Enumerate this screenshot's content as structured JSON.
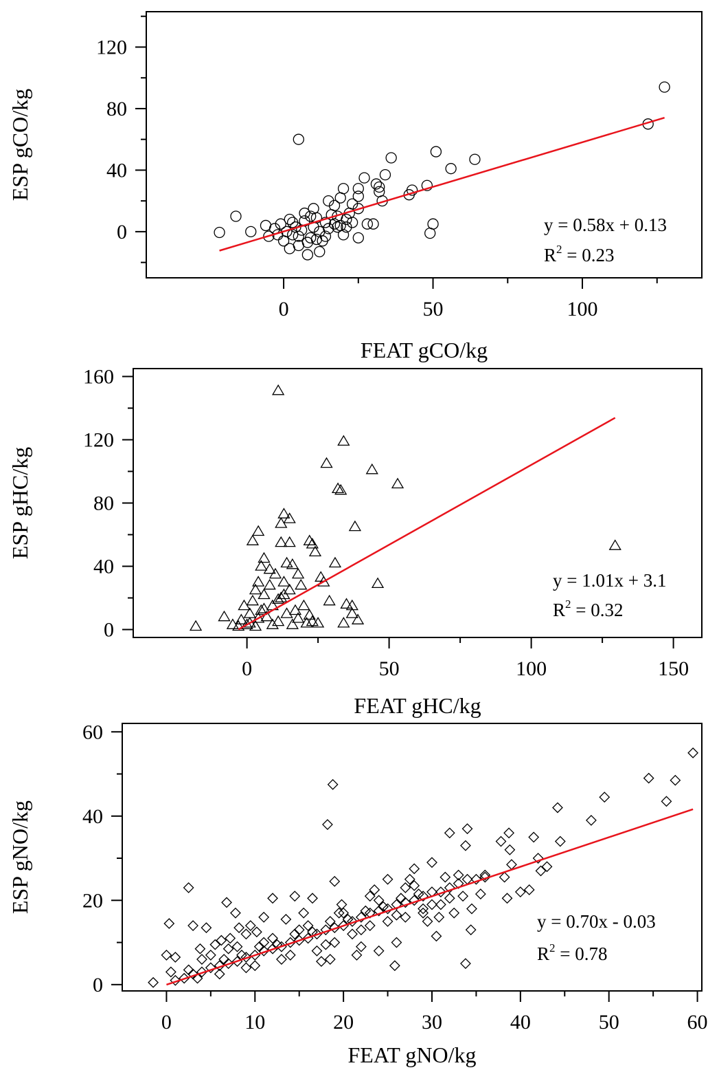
{
  "chart_data": [
    {
      "type": "scatter",
      "marker": "circle",
      "xlabel": "FEAT gCO/kg",
      "ylabel": "ESP gCO/kg",
      "xlim": [
        -46,
        140
      ],
      "ylim": [
        -30,
        143
      ],
      "xticks": [
        0,
        50,
        100
      ],
      "xminor": [
        25,
        75,
        125
      ],
      "yticks": [
        0,
        40,
        80,
        120
      ],
      "yminor": [
        -20,
        20,
        60,
        100,
        140
      ],
      "grid": false,
      "fit": {
        "slope": 0.58,
        "intercept": 0.13,
        "x_range": [
          -21.5,
          127.5
        ],
        "color": "#e8141c"
      },
      "equation": "y = 0.58x + 0.13",
      "r2_prefix": "R",
      "r2_sup": "2",
      "r2_value": " = 0.23",
      "points": [
        [
          -21.5,
          -0.5
        ],
        [
          -16,
          10
        ],
        [
          -11,
          0
        ],
        [
          -6,
          4
        ],
        [
          2,
          -11
        ],
        [
          2,
          8
        ],
        [
          4,
          3
        ],
        [
          5,
          60
        ],
        [
          5,
          -9
        ],
        [
          7,
          12
        ],
        [
          8,
          -15
        ],
        [
          9,
          -4
        ],
        [
          10,
          15
        ],
        [
          11,
          -5
        ],
        [
          12,
          -13
        ],
        [
          14,
          6
        ],
        [
          15,
          20
        ],
        [
          17,
          17
        ],
        [
          18,
          10
        ],
        [
          19,
          22
        ],
        [
          20,
          28
        ],
        [
          21,
          3
        ],
        [
          23,
          18
        ],
        [
          25,
          -4
        ],
        [
          25,
          15
        ],
        [
          25,
          23
        ],
        [
          25,
          28
        ],
        [
          27,
          35
        ],
        [
          28,
          5
        ],
        [
          30,
          5
        ],
        [
          31,
          31
        ],
        [
          32,
          29
        ],
        [
          32,
          26
        ],
        [
          33,
          20
        ],
        [
          34,
          37
        ],
        [
          36,
          48
        ],
        [
          42,
          24
        ],
        [
          43,
          27
        ],
        [
          48,
          30
        ],
        [
          49,
          -1
        ],
        [
          50,
          5
        ],
        [
          51,
          52
        ],
        [
          56,
          41
        ],
        [
          64,
          47
        ],
        [
          122,
          70
        ],
        [
          127.5,
          94
        ],
        [
          -5,
          -3
        ],
        [
          -3,
          2
        ],
        [
          0,
          -6
        ],
        [
          1,
          0
        ],
        [
          3,
          -2
        ],
        [
          6,
          1
        ],
        [
          8,
          -7
        ],
        [
          10,
          3
        ],
        [
          12,
          0
        ],
        [
          13,
          -6
        ],
        [
          15,
          2
        ],
        [
          17,
          5
        ],
        [
          19,
          4
        ],
        [
          21,
          8
        ],
        [
          22,
          12
        ],
        [
          16,
          11
        ],
        [
          11,
          9
        ],
        [
          5,
          -3
        ],
        [
          3,
          6
        ],
        [
          -1,
          5
        ],
        [
          -2,
          -2
        ],
        [
          7,
          7
        ],
        [
          9,
          10
        ],
        [
          18,
          3
        ],
        [
          23,
          6
        ],
        [
          20,
          -2
        ],
        [
          14,
          -3
        ]
      ]
    },
    {
      "type": "scatter",
      "marker": "triangle",
      "xlabel": "FEAT gHC/kg",
      "ylabel": "ESP gHC/kg",
      "xlim": [
        -40,
        160
      ],
      "ylim": [
        -5,
        165
      ],
      "xticks": [
        0,
        50,
        100,
        150
      ],
      "xminor": [
        25,
        75,
        125
      ],
      "yticks": [
        0,
        40,
        80,
        120,
        160
      ],
      "yminor": [
        20,
        60,
        100,
        140
      ],
      "grid": false,
      "fit": {
        "slope": 1.01,
        "intercept": 3.1,
        "x_range": [
          -3,
          129.5
        ],
        "color": "#e8141c"
      },
      "equation": "y = 1.01x + 3.1",
      "r2_prefix": "R",
      "r2_sup": "2",
      "r2_value": " = 0.32",
      "points": [
        [
          -18,
          2
        ],
        [
          -8,
          8
        ],
        [
          -5,
          3
        ],
        [
          2,
          56
        ],
        [
          4,
          62
        ],
        [
          6,
          45
        ],
        [
          11,
          151
        ],
        [
          12,
          55
        ],
        [
          12,
          67
        ],
        [
          13,
          73
        ],
        [
          15,
          70
        ],
        [
          15,
          55
        ],
        [
          16,
          41
        ],
        [
          22,
          56
        ],
        [
          23,
          54
        ],
        [
          24,
          49
        ],
        [
          25,
          4
        ],
        [
          26,
          33
        ],
        [
          27,
          30
        ],
        [
          28,
          105
        ],
        [
          29,
          18
        ],
        [
          31,
          42
        ],
        [
          32,
          89
        ],
        [
          33,
          88
        ],
        [
          34,
          119
        ],
        [
          34,
          4
        ],
        [
          35,
          16
        ],
        [
          37,
          10
        ],
        [
          37,
          15
        ],
        [
          38,
          65
        ],
        [
          39,
          6
        ],
        [
          44,
          101
        ],
        [
          46,
          29
        ],
        [
          53,
          92
        ],
        [
          129.5,
          53
        ],
        [
          0,
          3
        ],
        [
          1,
          10
        ],
        [
          2,
          18
        ],
        [
          3,
          25
        ],
        [
          4,
          30
        ],
        [
          5,
          12
        ],
        [
          6,
          22
        ],
        [
          7,
          8
        ],
        [
          8,
          28
        ],
        [
          9,
          15
        ],
        [
          10,
          35
        ],
        [
          11,
          5
        ],
        [
          12,
          20
        ],
        [
          13,
          30
        ],
        [
          14,
          10
        ],
        [
          15,
          25
        ],
        [
          16,
          3
        ],
        [
          17,
          12
        ],
        [
          18,
          7
        ],
        [
          20,
          15
        ],
        [
          22,
          9
        ],
        [
          -2,
          6
        ],
        [
          -1,
          15
        ],
        [
          3,
          2
        ],
        [
          5,
          40
        ],
        [
          8,
          38
        ],
        [
          14,
          42
        ],
        [
          18,
          35
        ],
        [
          21,
          4
        ],
        [
          23,
          5
        ],
        [
          19,
          28
        ],
        [
          -3,
          2
        ],
        [
          1,
          4
        ],
        [
          4,
          7
        ],
        [
          6,
          13
        ],
        [
          9,
          3
        ],
        [
          11,
          19
        ],
        [
          13,
          22
        ]
      ]
    },
    {
      "type": "scatter",
      "marker": "diamond",
      "xlabel": "FEAT gNO/kg",
      "ylabel": "ESP gNO/kg",
      "xlim": [
        -5,
        60.5
      ],
      "ylim": [
        -1.5,
        62
      ],
      "xticks": [
        0,
        10,
        20,
        30,
        40,
        50,
        60
      ],
      "xminor": [
        5,
        15,
        25,
        35,
        45,
        55
      ],
      "yticks": [
        0,
        20,
        40,
        60
      ],
      "yminor": [
        10,
        30,
        50
      ],
      "grid": false,
      "fit": {
        "slope": 0.7,
        "intercept": -0.03,
        "x_range": [
          0,
          59.5
        ],
        "color": "#e8141c"
      },
      "equation": "y = 0.70x - 0.03",
      "r2_prefix": "R",
      "r2_sup": "2",
      "r2_value": " = 0.78",
      "points": [
        [
          -1.5,
          0.5
        ],
        [
          0,
          7
        ],
        [
          0.3,
          14.5
        ],
        [
          0.5,
          3
        ],
        [
          1,
          6.5
        ],
        [
          2.5,
          23
        ],
        [
          3,
          14
        ],
        [
          4.5,
          13.5
        ],
        [
          6.8,
          19.5
        ],
        [
          7.8,
          17
        ],
        [
          9,
          12
        ],
        [
          11,
          16
        ],
        [
          12,
          20.5
        ],
        [
          14.5,
          21
        ],
        [
          16.5,
          20.5
        ],
        [
          18.2,
          38
        ],
        [
          18.8,
          47.5
        ],
        [
          19,
          24.5
        ],
        [
          18.5,
          6
        ],
        [
          19.5,
          17
        ],
        [
          22,
          9
        ],
        [
          23,
          21
        ],
        [
          24,
          8
        ],
        [
          25,
          25
        ],
        [
          25.8,
          4.5
        ],
        [
          26,
          10
        ],
        [
          27,
          23
        ],
        [
          28,
          27.5
        ],
        [
          29,
          17
        ],
        [
          30,
          29
        ],
        [
          30.5,
          11.5
        ],
        [
          32,
          36
        ],
        [
          33,
          26
        ],
        [
          33.8,
          5
        ],
        [
          33.8,
          33
        ],
        [
          34,
          37
        ],
        [
          34.4,
          13
        ],
        [
          36,
          26
        ],
        [
          37.8,
          34
        ],
        [
          38.2,
          25.5
        ],
        [
          38.5,
          20.5
        ],
        [
          38.7,
          36
        ],
        [
          38.8,
          32
        ],
        [
          39,
          28.5
        ],
        [
          40,
          22
        ],
        [
          41,
          22.5
        ],
        [
          41.5,
          35
        ],
        [
          42,
          30
        ],
        [
          42.3,
          27
        ],
        [
          43,
          28
        ],
        [
          44.5,
          34
        ],
        [
          44.2,
          42
        ],
        [
          48,
          39
        ],
        [
          49.5,
          44.5
        ],
        [
          54.5,
          49
        ],
        [
          56.5,
          43.5
        ],
        [
          57.5,
          48.5
        ],
        [
          59.5,
          55
        ],
        [
          2,
          1.5
        ],
        [
          3,
          2.5
        ],
        [
          4,
          3
        ],
        [
          5,
          4
        ],
        [
          6,
          4.5
        ],
        [
          7,
          5
        ],
        [
          8,
          5.5
        ],
        [
          9,
          6.5
        ],
        [
          10,
          7
        ],
        [
          11,
          8
        ],
        [
          12,
          8.5
        ],
        [
          13,
          9
        ],
        [
          14,
          10
        ],
        [
          15,
          10.5
        ],
        [
          16,
          11
        ],
        [
          17,
          12
        ],
        [
          18,
          13
        ],
        [
          19,
          13.5
        ],
        [
          20,
          14
        ],
        [
          21,
          15
        ],
        [
          22,
          16
        ],
        [
          23,
          17
        ],
        [
          24,
          17.5
        ],
        [
          25,
          18
        ],
        [
          26,
          19
        ],
        [
          27,
          19.5
        ],
        [
          28,
          20
        ],
        [
          29,
          21
        ],
        [
          30,
          22
        ],
        [
          31,
          22
        ],
        [
          32,
          23
        ],
        [
          33,
          24
        ],
        [
          34,
          25
        ],
        [
          35,
          25
        ],
        [
          36,
          25.5
        ],
        [
          5,
          7
        ],
        [
          7,
          8.5
        ],
        [
          9,
          4
        ],
        [
          11,
          10
        ],
        [
          13,
          6
        ],
        [
          15,
          13
        ],
        [
          17,
          8
        ],
        [
          19,
          10
        ],
        [
          21,
          12
        ],
        [
          23,
          14
        ],
        [
          25,
          15
        ],
        [
          27,
          16
        ],
        [
          29,
          18
        ],
        [
          31,
          19
        ],
        [
          4,
          6
        ],
        [
          6,
          2.5
        ],
        [
          8,
          9
        ],
        [
          10,
          4.5
        ],
        [
          12,
          11
        ],
        [
          14,
          7
        ],
        [
          16,
          14
        ],
        [
          18,
          9.5
        ],
        [
          20,
          17
        ],
        [
          22,
          13
        ],
        [
          24,
          20
        ],
        [
          26,
          16.5
        ],
        [
          28,
          23.5
        ],
        [
          30,
          19
        ],
        [
          32,
          20.5
        ],
        [
          1,
          1
        ],
        [
          2.5,
          3.5
        ],
        [
          3.5,
          1.5
        ],
        [
          6.5,
          6
        ],
        [
          8.5,
          7
        ],
        [
          10.5,
          9
        ],
        [
          12.5,
          9.5
        ],
        [
          14.5,
          12
        ],
        [
          16.5,
          12.5
        ],
        [
          18.5,
          15
        ],
        [
          20.5,
          15.5
        ],
        [
          22.5,
          17.5
        ],
        [
          24.5,
          18.5
        ],
        [
          26.5,
          20.5
        ],
        [
          28.5,
          21.5
        ],
        [
          17.5,
          5.5
        ],
        [
          21.5,
          7
        ],
        [
          13.5,
          15.5
        ],
        [
          15.5,
          17
        ],
        [
          10.2,
          12.5
        ],
        [
          9.5,
          14
        ],
        [
          5.5,
          9.5
        ],
        [
          3.8,
          8.5
        ],
        [
          6.2,
          10.5
        ],
        [
          7.2,
          11
        ],
        [
          8.2,
          13.5
        ],
        [
          19.8,
          19
        ],
        [
          23.5,
          22.5
        ],
        [
          27.5,
          25
        ],
        [
          31.5,
          25.5
        ],
        [
          33.5,
          21
        ],
        [
          35.5,
          21.5
        ],
        [
          34.5,
          18
        ],
        [
          32.5,
          17
        ],
        [
          29.5,
          15
        ],
        [
          30.8,
          16
        ]
      ]
    }
  ]
}
